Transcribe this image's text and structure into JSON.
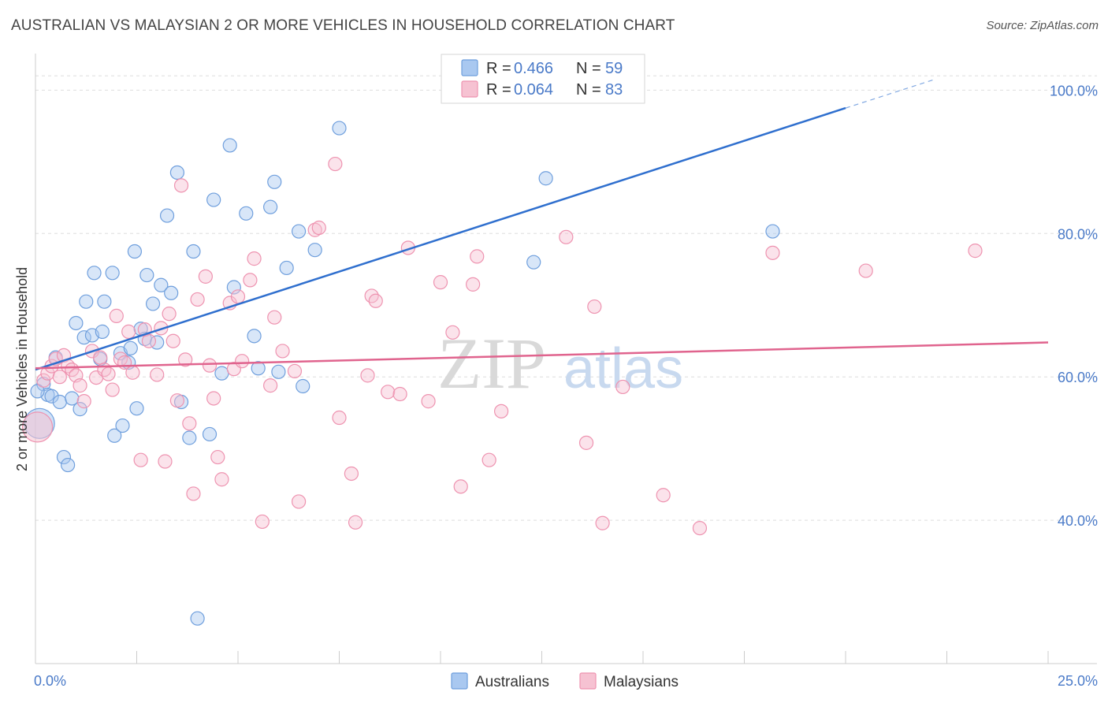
{
  "title": "AUSTRALIAN VS MALAYSIAN 2 OR MORE VEHICLES IN HOUSEHOLD CORRELATION CHART",
  "source": "Source: ZipAtlas.com",
  "watermark": {
    "zip": "ZIP",
    "atlas": "atlas"
  },
  "colors": {
    "australians_fill": "#a9c8f0",
    "australians_stroke": "#6f9fdd",
    "australians_line": "#2f6fce",
    "malaysians_fill": "#f6c2d2",
    "malaysians_stroke": "#ee93b0",
    "malaysians_line": "#e0648e",
    "tick_label": "#4a7ac8",
    "grid": "#dddddd"
  },
  "legend": {
    "rows": [
      {
        "r_label": "R =",
        "r_value": "0.466",
        "n_label": "N =",
        "n_value": "59"
      },
      {
        "r_label": "R =",
        "r_value": "0.064",
        "n_label": "N =",
        "n_value": "83"
      }
    ]
  },
  "bottom_legend": [
    "Australians",
    "Malaysians"
  ],
  "chart_data": {
    "type": "scatter",
    "title": "AUSTRALIAN VS MALAYSIAN 2 OR MORE VEHICLES IN HOUSEHOLD CORRELATION CHART",
    "xlabel": "",
    "ylabel": "2 or more Vehicles in Household",
    "xlim": [
      0,
      25
    ],
    "ylim": [
      20,
      104
    ],
    "x_tick_labels": [
      "0.0%",
      "25.0%"
    ],
    "y_ticks": [
      40,
      60,
      80,
      100
    ],
    "y_tick_labels": [
      "40.0%",
      "60.0%",
      "80.0%",
      "100.0%"
    ],
    "grid": true,
    "legend_position": "top-center",
    "series": [
      {
        "name": "Australians",
        "r": 0.466,
        "n": 59,
        "trend": {
          "x": [
            0,
            20
          ],
          "y": [
            61,
            97.5
          ],
          "dashed_extension": {
            "x": [
              20,
              22.2
            ],
            "y": [
              97.5,
              101.5
            ]
          }
        },
        "points": [
          [
            0.1,
            53.5
          ],
          [
            0.2,
            59.0
          ],
          [
            0.3,
            57.5
          ],
          [
            0.4,
            57.3
          ],
          [
            0.5,
            62.7
          ],
          [
            0.6,
            56.5
          ],
          [
            0.7,
            48.8
          ],
          [
            0.8,
            47.7
          ],
          [
            0.9,
            57.0
          ],
          [
            1.0,
            67.5
          ],
          [
            1.1,
            55.5
          ],
          [
            1.2,
            65.5
          ],
          [
            1.25,
            70.5
          ],
          [
            1.4,
            65.8
          ],
          [
            1.45,
            74.5
          ],
          [
            1.6,
            62.5
          ],
          [
            1.65,
            66.3
          ],
          [
            1.7,
            70.5
          ],
          [
            1.9,
            74.5
          ],
          [
            1.95,
            51.8
          ],
          [
            2.1,
            63.3
          ],
          [
            2.15,
            53.2
          ],
          [
            2.3,
            62.0
          ],
          [
            2.35,
            64.0
          ],
          [
            2.45,
            77.5
          ],
          [
            2.5,
            55.6
          ],
          [
            2.6,
            66.7
          ],
          [
            2.7,
            65.3
          ],
          [
            2.75,
            74.2
          ],
          [
            2.9,
            70.2
          ],
          [
            3.0,
            64.8
          ],
          [
            3.1,
            72.8
          ],
          [
            3.25,
            82.5
          ],
          [
            3.35,
            71.7
          ],
          [
            3.5,
            88.5
          ],
          [
            3.6,
            56.5
          ],
          [
            3.8,
            51.5
          ],
          [
            3.9,
            77.5
          ],
          [
            4.0,
            26.3
          ],
          [
            4.3,
            52.0
          ],
          [
            4.4,
            84.7
          ],
          [
            4.6,
            60.5
          ],
          [
            4.8,
            92.3
          ],
          [
            4.9,
            72.5
          ],
          [
            5.2,
            82.8
          ],
          [
            5.4,
            65.7
          ],
          [
            5.5,
            61.2
          ],
          [
            5.8,
            83.7
          ],
          [
            5.9,
            87.2
          ],
          [
            6.0,
            60.7
          ],
          [
            6.2,
            75.2
          ],
          [
            6.5,
            80.3
          ],
          [
            6.6,
            58.7
          ],
          [
            6.9,
            77.7
          ],
          [
            7.5,
            94.7
          ],
          [
            12.3,
            76.0
          ],
          [
            12.6,
            87.7
          ],
          [
            18.2,
            80.3
          ],
          [
            0.05,
            58.0
          ]
        ]
      },
      {
        "name": "Malaysians",
        "r": 0.064,
        "n": 83,
        "trend": {
          "x": [
            0,
            25
          ],
          "y": [
            61.2,
            64.8
          ]
        },
        "points": [
          [
            0.05,
            53.0
          ],
          [
            0.2,
            59.5
          ],
          [
            0.3,
            60.5
          ],
          [
            0.4,
            61.5
          ],
          [
            0.5,
            62.5
          ],
          [
            0.6,
            60.0
          ],
          [
            0.7,
            63.0
          ],
          [
            0.8,
            61.5
          ],
          [
            0.9,
            61.0
          ],
          [
            1.0,
            60.2
          ],
          [
            1.1,
            58.8
          ],
          [
            1.2,
            56.6
          ],
          [
            1.4,
            63.6
          ],
          [
            1.5,
            59.9
          ],
          [
            1.6,
            62.7
          ],
          [
            1.7,
            61.0
          ],
          [
            1.8,
            60.4
          ],
          [
            1.9,
            58.2
          ],
          [
            2.0,
            68.5
          ],
          [
            2.1,
            62.5
          ],
          [
            2.2,
            62.0
          ],
          [
            2.3,
            66.3
          ],
          [
            2.4,
            60.6
          ],
          [
            2.6,
            48.4
          ],
          [
            2.7,
            66.6
          ],
          [
            2.8,
            65.0
          ],
          [
            3.0,
            60.3
          ],
          [
            3.1,
            66.8
          ],
          [
            3.2,
            48.2
          ],
          [
            3.3,
            68.8
          ],
          [
            3.4,
            65.0
          ],
          [
            3.5,
            56.7
          ],
          [
            3.6,
            86.7
          ],
          [
            3.7,
            62.4
          ],
          [
            3.8,
            53.5
          ],
          [
            3.9,
            43.7
          ],
          [
            4.0,
            70.8
          ],
          [
            4.2,
            74.0
          ],
          [
            4.3,
            61.6
          ],
          [
            4.4,
            57.0
          ],
          [
            4.5,
            48.8
          ],
          [
            4.6,
            45.7
          ],
          [
            4.8,
            70.3
          ],
          [
            4.9,
            61.1
          ],
          [
            5.0,
            71.2
          ],
          [
            5.1,
            62.2
          ],
          [
            5.3,
            73.5
          ],
          [
            5.4,
            76.5
          ],
          [
            5.6,
            39.8
          ],
          [
            5.8,
            58.8
          ],
          [
            5.9,
            68.3
          ],
          [
            6.1,
            63.6
          ],
          [
            6.4,
            60.8
          ],
          [
            6.5,
            42.6
          ],
          [
            6.9,
            80.5
          ],
          [
            7.0,
            80.8
          ],
          [
            7.4,
            89.7
          ],
          [
            7.5,
            54.3
          ],
          [
            7.8,
            46.5
          ],
          [
            7.9,
            39.7
          ],
          [
            8.2,
            60.2
          ],
          [
            8.3,
            71.3
          ],
          [
            8.4,
            70.6
          ],
          [
            8.7,
            57.9
          ],
          [
            9.0,
            57.6
          ],
          [
            9.2,
            78.0
          ],
          [
            9.7,
            56.6
          ],
          [
            10.0,
            73.2
          ],
          [
            10.3,
            66.2
          ],
          [
            10.5,
            44.7
          ],
          [
            10.8,
            72.9
          ],
          [
            10.9,
            76.8
          ],
          [
            11.2,
            48.4
          ],
          [
            11.5,
            55.2
          ],
          [
            13.1,
            79.5
          ],
          [
            13.6,
            50.8
          ],
          [
            13.8,
            69.8
          ],
          [
            14.0,
            39.6
          ],
          [
            14.5,
            58.6
          ],
          [
            15.5,
            43.5
          ],
          [
            16.4,
            38.9
          ],
          [
            18.2,
            77.3
          ],
          [
            20.5,
            74.8
          ],
          [
            23.2,
            77.6
          ]
        ]
      }
    ]
  }
}
